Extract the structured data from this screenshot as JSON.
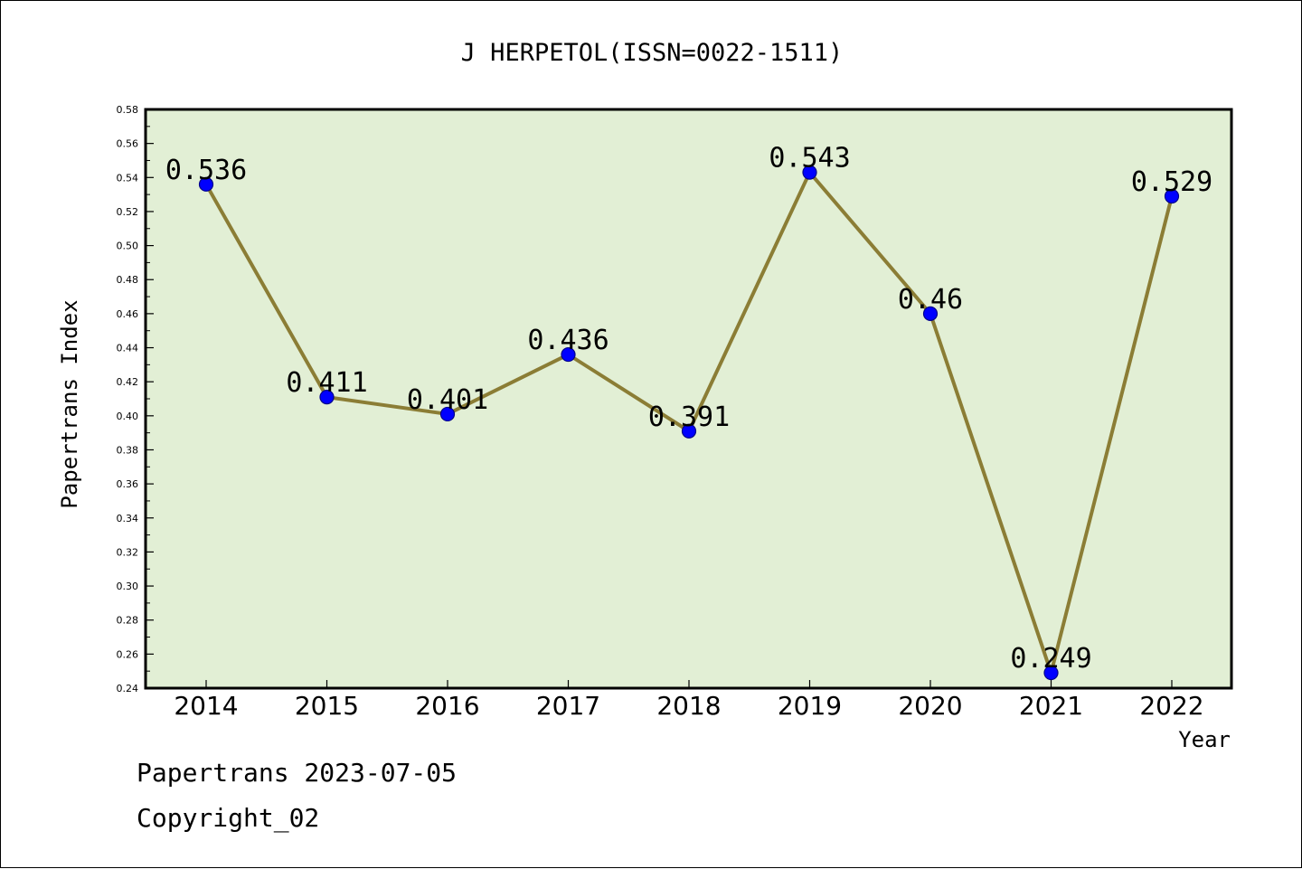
{
  "chart_data": {
    "type": "line",
    "title": "J HERPETOL(ISSN=0022-1511)",
    "xlabel": "Year",
    "ylabel": "Papertrans Index",
    "categories": [
      "2014",
      "2015",
      "2016",
      "2017",
      "2018",
      "2019",
      "2020",
      "2021",
      "2022"
    ],
    "values": [
      0.536,
      0.411,
      0.401,
      0.436,
      0.391,
      0.543,
      0.46,
      0.249,
      0.529
    ],
    "data_labels": [
      "0.536",
      "0.411",
      "0.401",
      "0.436",
      "0.391",
      "0.543",
      "0.46",
      "0.249",
      "0.529"
    ],
    "ylim": [
      0.24,
      0.58
    ],
    "yticks": [
      "0.24",
      "0.26",
      "0.28",
      "0.30",
      "0.32",
      "0.34",
      "0.36",
      "0.38",
      "0.40",
      "0.42",
      "0.44",
      "0.46",
      "0.48",
      "0.50",
      "0.52",
      "0.54",
      "0.56",
      "0.58"
    ],
    "grid": false,
    "legend": "none",
    "colors": {
      "plot_background": "#e2efd5",
      "line": "#8b7d35",
      "marker_fill": "#0000ff",
      "marker_edge": "#00008b"
    }
  },
  "footer": {
    "line1": "Papertrans 2023-07-05",
    "line2": "Copyright_02"
  }
}
